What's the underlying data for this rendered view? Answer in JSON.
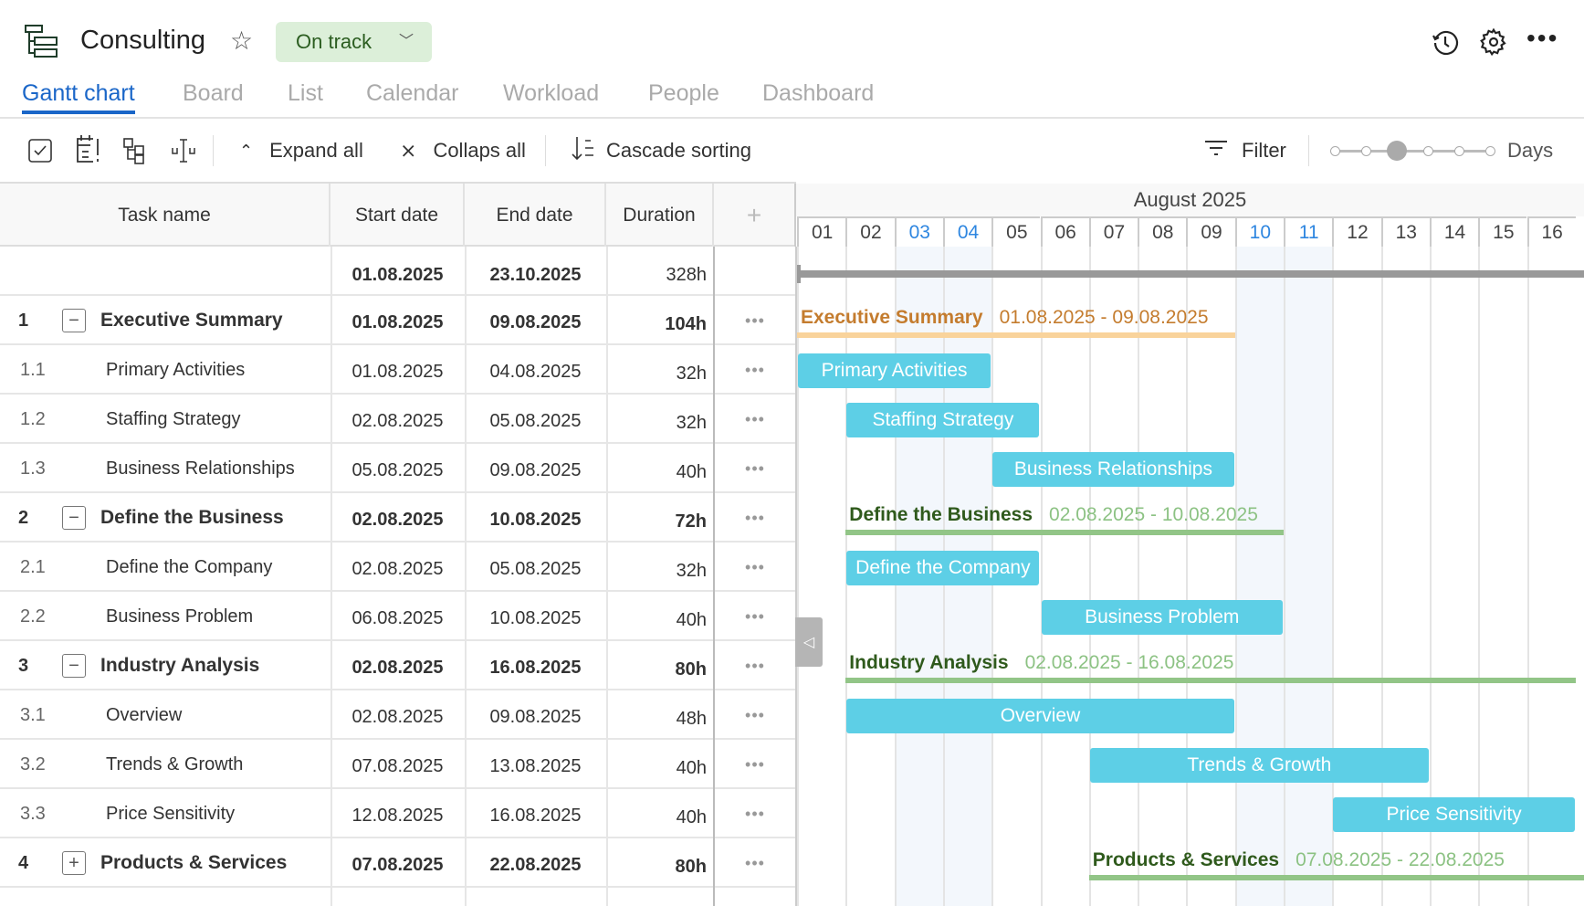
{
  "header": {
    "title": "Consulting",
    "status": "On track",
    "icons": [
      "project-tree-icon",
      "star-icon",
      "history-icon",
      "gear-icon",
      "more-icon"
    ]
  },
  "tabs": [
    {
      "label": "Gantt chart",
      "active": true
    },
    {
      "label": "Board"
    },
    {
      "label": "List"
    },
    {
      "label": "Calendar"
    },
    {
      "label": "Workload"
    },
    {
      "label": "People"
    },
    {
      "label": "Dashboard"
    }
  ],
  "toolbar": {
    "expand_all": "Expand all",
    "collapse_all": "Collaps all",
    "cascade_sorting": "Cascade sorting",
    "filter": "Filter",
    "zoom_level": "Days",
    "zoom_steps": 6,
    "zoom_selected": 3
  },
  "grid": {
    "columns": [
      "Task name",
      "Start date",
      "End date",
      "Duration"
    ],
    "add_column": "+",
    "total": {
      "start": "01.08.2025",
      "end": "23.10.2025",
      "duration": "328h"
    },
    "tasks": [
      {
        "num": "1",
        "name": "Executive Summary",
        "start": "01.08.2025",
        "end": "09.08.2025",
        "duration": "104h",
        "group": true,
        "toggle": "−",
        "color": "#c47c2e",
        "line": "#f9d39b",
        "datecolor": "#c47c2e"
      },
      {
        "num": "1.1",
        "name": "Primary Activities",
        "start": "01.08.2025",
        "end": "04.08.2025",
        "duration": "32h"
      },
      {
        "num": "1.2",
        "name": "Staffing Strategy",
        "start": "02.08.2025",
        "end": "05.08.2025",
        "duration": "32h"
      },
      {
        "num": "1.3",
        "name": "Business Relationships",
        "start": "05.08.2025",
        "end": "09.08.2025",
        "duration": "40h"
      },
      {
        "num": "2",
        "name": "Define the Business",
        "start": "02.08.2025",
        "end": "10.08.2025",
        "duration": "72h",
        "group": true,
        "toggle": "−",
        "color": "#2f5a1c",
        "line": "#92c587",
        "datecolor": "#8cc283"
      },
      {
        "num": "2.1",
        "name": "Define the Company",
        "start": "02.08.2025",
        "end": "05.08.2025",
        "duration": "32h"
      },
      {
        "num": "2.2",
        "name": "Business Problem",
        "start": "06.08.2025",
        "end": "10.08.2025",
        "duration": "40h"
      },
      {
        "num": "3",
        "name": "Industry Analysis",
        "start": "02.08.2025",
        "end": "16.08.2025",
        "duration": "80h",
        "group": true,
        "toggle": "−",
        "color": "#2f5a1c",
        "line": "#92c587",
        "datecolor": "#8cc283"
      },
      {
        "num": "3.1",
        "name": "Overview",
        "start": "02.08.2025",
        "end": "09.08.2025",
        "duration": "48h"
      },
      {
        "num": "3.2",
        "name": "Trends & Growth",
        "start": "07.08.2025",
        "end": "13.08.2025",
        "duration": "40h"
      },
      {
        "num": "3.3",
        "name": "Price Sensitivity",
        "start": "12.08.2025",
        "end": "16.08.2025",
        "duration": "40h"
      },
      {
        "num": "4",
        "name": "Products & Services",
        "start": "07.08.2025",
        "end": "22.08.2025",
        "duration": "80h",
        "group": true,
        "toggle": "+",
        "color": "#2f5a1c",
        "line": "#92c587",
        "datecolor": "#8cc283"
      }
    ]
  },
  "timeline": {
    "month": "August 2025",
    "days": [
      "01",
      "02",
      "03",
      "04",
      "05",
      "06",
      "07",
      "08",
      "09",
      "10",
      "11",
      "12",
      "13",
      "14",
      "15",
      "16"
    ],
    "highlighted": [
      "03",
      "04",
      "10",
      "11"
    ],
    "bar_color": "#5dcfe6",
    "today_color": "#2e86e0"
  }
}
